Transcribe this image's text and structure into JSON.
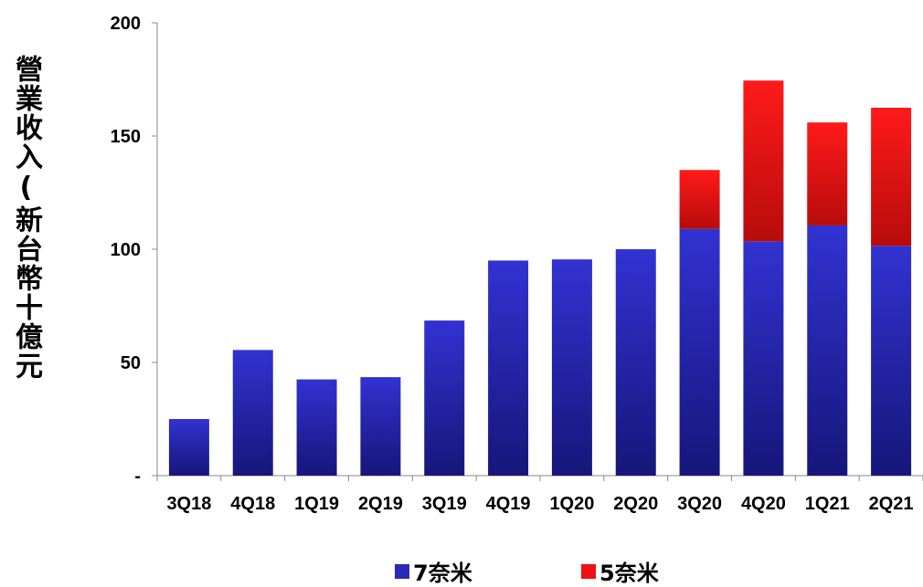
{
  "chart_data": {
    "type": "bar",
    "stacked": true,
    "categories": [
      "3Q18",
      "4Q18",
      "1Q19",
      "2Q19",
      "3Q19",
      "4Q19",
      "1Q20",
      "2Q20",
      "3Q20",
      "4Q20",
      "1Q21",
      "2Q21"
    ],
    "series": [
      {
        "name": "7奈米",
        "color": "#2a2ab8",
        "values": [
          25,
          55.5,
          42.5,
          43.5,
          68.5,
          95,
          95.5,
          100,
          109,
          103.5,
          110.5,
          101.5
        ]
      },
      {
        "name": "5奈米",
        "color": "#ee1111",
        "values": [
          0,
          0,
          0,
          0,
          0,
          0,
          0,
          0,
          26,
          71,
          45.5,
          61
        ]
      }
    ],
    "ylabel": "營業收入(新台幣十億元",
    "ylim": [
      0,
      200
    ],
    "yticks": [
      0,
      50,
      100,
      150,
      200
    ],
    "ytick_labels": [
      "-",
      "50",
      "100",
      "150",
      "200"
    ],
    "grid": false,
    "legend_position": "bottom"
  }
}
